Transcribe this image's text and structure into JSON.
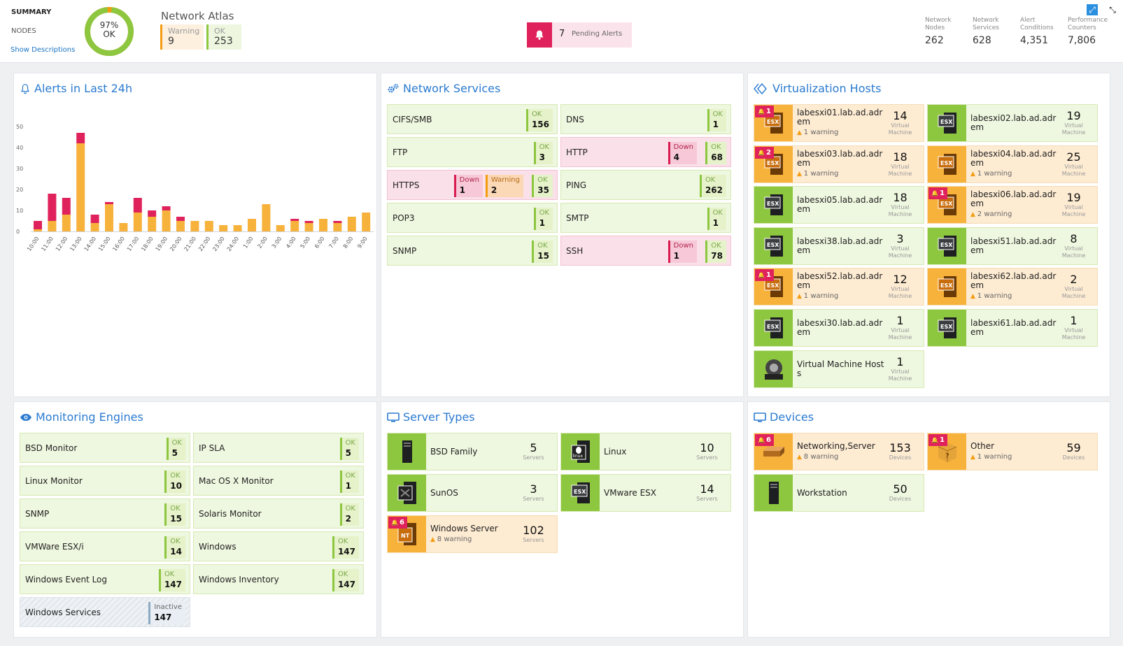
{
  "summary": {
    "title": "SUMMARY",
    "nodes_label": "NODES",
    "show_desc": "Show Descriptions",
    "donut_percent": "97%",
    "donut_label": "OK",
    "donut_ok_fraction": 0.97,
    "atlas_title": "Network Atlas",
    "warning_label": "Warning",
    "warning_count": "9",
    "ok_label": "OK",
    "ok_count": "253"
  },
  "pending_alerts": {
    "count": "7",
    "label": "Pending Alerts"
  },
  "stats": [
    {
      "l1": "Network",
      "l2": "Nodes",
      "value": "262"
    },
    {
      "l1": "Network",
      "l2": "Services",
      "value": "628"
    },
    {
      "l1": "Alert",
      "l2": "Conditions",
      "value": "4,351"
    },
    {
      "l1": "Performance",
      "l2": "Counters",
      "value": "7,806"
    }
  ],
  "colors": {
    "ok": "#8dc63f",
    "down": "#e0225c",
    "warning": "#f39c12",
    "accent": "#2b7bd0"
  },
  "alerts_panel": {
    "title": "Alerts in Last 24h"
  },
  "chart_data": {
    "type": "bar",
    "stacked": true,
    "categories": [
      "10:00",
      "11:00",
      "12:00",
      "13:00",
      "14:00",
      "15:00",
      "16:00",
      "17:00",
      "18:00",
      "19:00",
      "20:00",
      "21:00",
      "22:00",
      "23:00",
      "24:00",
      "1:00",
      "2:00",
      "3:00",
      "4:00",
      "5:00",
      "6:00",
      "7:00",
      "8:00",
      "9:00"
    ],
    "series": [
      {
        "color": "#f7b23b",
        "values": [
          1,
          5,
          8,
          42,
          4,
          13,
          4,
          9,
          7,
          10,
          5,
          5,
          5,
          3,
          3,
          6,
          13,
          3,
          5,
          4,
          6,
          4,
          7,
          9
        ]
      },
      {
        "color": "#e0225c",
        "values": [
          4,
          13,
          8,
          5,
          4,
          1,
          0,
          7,
          3,
          2,
          2,
          0,
          0,
          0,
          0,
          0,
          0,
          0,
          1,
          1,
          0,
          1,
          0,
          0
        ]
      }
    ],
    "yticks": [
      "0",
      "10",
      "20",
      "30",
      "40",
      "50"
    ],
    "ylim": [
      0,
      50
    ],
    "xlabel": "",
    "ylabel": "",
    "title": "",
    "grid": false
  },
  "network_services": {
    "title": "Network Services",
    "items": [
      {
        "name": "CIFS/SMB",
        "state": "ok",
        "badges": [
          {
            "k": "ok",
            "l": "OK",
            "n": "156"
          }
        ]
      },
      {
        "name": "DNS",
        "state": "ok",
        "badges": [
          {
            "k": "ok",
            "l": "OK",
            "n": "1"
          }
        ]
      },
      {
        "name": "FTP",
        "state": "ok",
        "badges": [
          {
            "k": "ok",
            "l": "OK",
            "n": "3"
          }
        ]
      },
      {
        "name": "HTTP",
        "state": "down",
        "badges": [
          {
            "k": "down",
            "l": "Down",
            "n": "4"
          },
          {
            "k": "ok",
            "l": "OK",
            "n": "68"
          }
        ]
      },
      {
        "name": "HTTPS",
        "state": "down",
        "badges": [
          {
            "k": "down",
            "l": "Down",
            "n": "1"
          },
          {
            "k": "warn",
            "l": "Warning",
            "n": "2"
          },
          {
            "k": "ok",
            "l": "OK",
            "n": "35"
          }
        ]
      },
      {
        "name": "PING",
        "state": "ok",
        "badges": [
          {
            "k": "ok",
            "l": "OK",
            "n": "262"
          }
        ]
      },
      {
        "name": "POP3",
        "state": "ok",
        "badges": [
          {
            "k": "ok",
            "l": "OK",
            "n": "1"
          }
        ]
      },
      {
        "name": "SMTP",
        "state": "ok",
        "badges": [
          {
            "k": "ok",
            "l": "OK",
            "n": "1"
          }
        ]
      },
      {
        "name": "SNMP",
        "state": "ok",
        "badges": [
          {
            "k": "ok",
            "l": "OK",
            "n": "15"
          }
        ]
      },
      {
        "name": "SSH",
        "state": "down",
        "badges": [
          {
            "k": "down",
            "l": "Down",
            "n": "1"
          },
          {
            "k": "ok",
            "l": "OK",
            "n": "78"
          }
        ]
      }
    ]
  },
  "virtualization": {
    "title": "Virtualization Hosts",
    "unit": "Virtual Machine",
    "items": [
      {
        "name": "labesxi01.lab.ad.adrem",
        "count": "14",
        "alerts": "1",
        "warning": "1 warning",
        "state": "warn",
        "icon": "esx"
      },
      {
        "name": "labesxi02.lab.ad.adrem",
        "count": "19",
        "alerts": "",
        "warning": "",
        "state": "ok",
        "icon": "esx"
      },
      {
        "name": "labesxi03.lab.ad.adrem",
        "count": "18",
        "alerts": "2",
        "warning": "1 warning",
        "state": "warn",
        "icon": "esx"
      },
      {
        "name": "labesxi04.lab.ad.adrem",
        "count": "25",
        "alerts": "",
        "warning": "1 warning",
        "state": "warn",
        "icon": "esx"
      },
      {
        "name": "labesxi05.lab.ad.adrem",
        "count": "18",
        "alerts": "",
        "warning": "",
        "state": "ok",
        "icon": "esx"
      },
      {
        "name": "labesxi06.lab.ad.adrem",
        "count": "19",
        "alerts": "1",
        "warning": "2 warning",
        "state": "warn",
        "icon": "esx"
      },
      {
        "name": "labesxi38.lab.ad.adrem",
        "count": "3",
        "alerts": "",
        "warning": "",
        "state": "ok",
        "icon": "esx"
      },
      {
        "name": "labesxi51.lab.ad.adrem",
        "count": "8",
        "alerts": "",
        "warning": "",
        "state": "ok",
        "icon": "esx"
      },
      {
        "name": "labesxi52.lab.ad.adrem",
        "count": "12",
        "alerts": "1",
        "warning": "1 warning",
        "state": "warn",
        "icon": "esx"
      },
      {
        "name": "labesxi62.lab.ad.adrem",
        "count": "2",
        "alerts": "",
        "warning": "1 warning",
        "state": "warn",
        "icon": "esx"
      },
      {
        "name": "labesxi30.lab.ad.adrem",
        "count": "1",
        "alerts": "",
        "warning": "",
        "state": "ok",
        "icon": "esx"
      },
      {
        "name": "labesxi61.lab.ad.adrem",
        "count": "1",
        "alerts": "",
        "warning": "",
        "state": "ok",
        "icon": "esx"
      },
      {
        "name": "Virtual Machine Hosts",
        "count": "1",
        "alerts": "",
        "warning": "",
        "state": "ok",
        "icon": "vmhost"
      }
    ]
  },
  "monitoring_engines": {
    "title": "Monitoring Engines",
    "items": [
      {
        "name": "BSD Monitor",
        "badge": {
          "k": "ok",
          "l": "OK",
          "n": "5"
        }
      },
      {
        "name": "IP SLA",
        "badge": {
          "k": "ok",
          "l": "OK",
          "n": "5"
        }
      },
      {
        "name": "Linux Monitor",
        "badge": {
          "k": "ok",
          "l": "OK",
          "n": "10"
        }
      },
      {
        "name": "Mac OS X Monitor",
        "badge": {
          "k": "ok",
          "l": "OK",
          "n": "1"
        }
      },
      {
        "name": "SNMP",
        "badge": {
          "k": "ok",
          "l": "OK",
          "n": "15"
        }
      },
      {
        "name": "Solaris Monitor",
        "badge": {
          "k": "ok",
          "l": "OK",
          "n": "2"
        }
      },
      {
        "name": "VMWare ESX/i",
        "badge": {
          "k": "ok",
          "l": "OK",
          "n": "14"
        }
      },
      {
        "name": "Windows",
        "badge": {
          "k": "ok",
          "l": "OK",
          "n": "147"
        }
      },
      {
        "name": "Windows Event Log",
        "badge": {
          "k": "ok",
          "l": "OK",
          "n": "147"
        }
      },
      {
        "name": "Windows Inventory",
        "badge": {
          "k": "ok",
          "l": "OK",
          "n": "147"
        }
      },
      {
        "name": "Windows Services",
        "badge": {
          "k": "inact",
          "l": "Inactive",
          "n": "147"
        }
      }
    ]
  },
  "server_types": {
    "title": "Server Types",
    "unit": "Servers",
    "items": [
      {
        "name": "BSD Family",
        "count": "5",
        "alerts": "",
        "warning": "",
        "state": "ok",
        "icon": "server"
      },
      {
        "name": "Linux",
        "count": "10",
        "alerts": "",
        "warning": "",
        "state": "ok",
        "icon": "linux"
      },
      {
        "name": "SunOS",
        "count": "3",
        "alerts": "",
        "warning": "",
        "state": "ok",
        "icon": "sun"
      },
      {
        "name": "VMware ESX",
        "count": "14",
        "alerts": "",
        "warning": "",
        "state": "ok",
        "icon": "esx"
      },
      {
        "name": "Windows Server",
        "count": "102",
        "alerts": "6",
        "warning": "8 warning",
        "state": "warn",
        "icon": "nt"
      }
    ]
  },
  "devices": {
    "title": "Devices",
    "unit": "Devices",
    "items": [
      {
        "name": "Networking,Server",
        "count": "153",
        "alerts": "6",
        "warning": "8 warning",
        "state": "warn",
        "icon": "switch"
      },
      {
        "name": "Other",
        "count": "59",
        "alerts": "1",
        "warning": "1 warning",
        "state": "warn",
        "icon": "box"
      },
      {
        "name": "Workstation",
        "count": "50",
        "alerts": "",
        "warning": "",
        "state": "ok",
        "icon": "server"
      }
    ]
  }
}
